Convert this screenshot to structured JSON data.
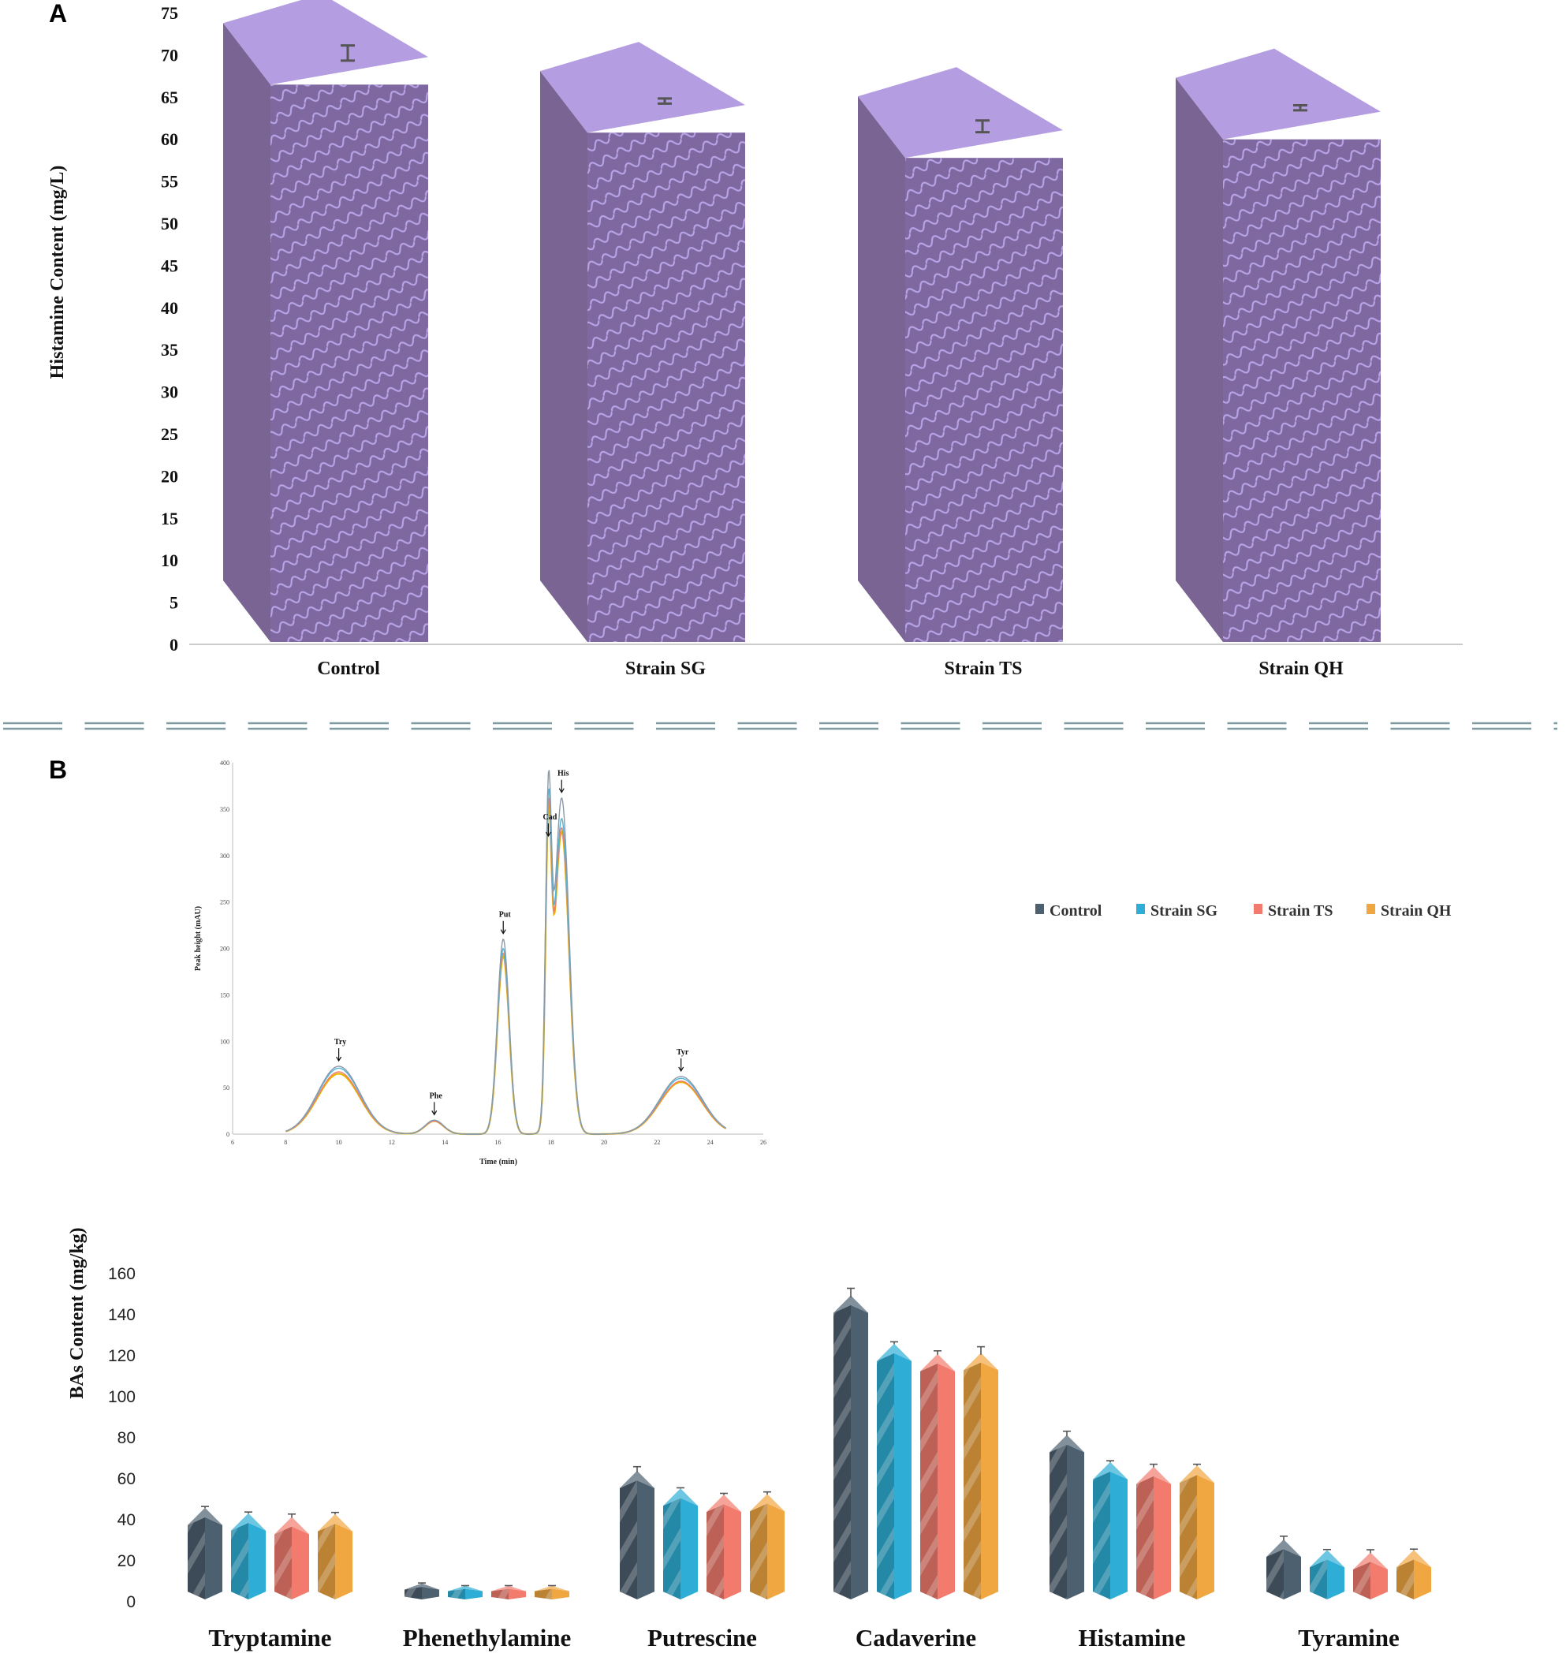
{
  "panel_a": {
    "letter": "A"
  },
  "panel_b": {
    "letter": "B"
  },
  "chart_data": [
    {
      "id": "A",
      "type": "bar",
      "style": "3d",
      "title": "",
      "xlabel": "",
      "ylabel": "Histamine Content (mg/L)",
      "ylim": [
        0,
        75
      ],
      "yticks": [
        0,
        5,
        10,
        15,
        20,
        25,
        30,
        35,
        40,
        45,
        50,
        55,
        60,
        65,
        70,
        75
      ],
      "categories": [
        "Control",
        "Strain SG",
        "Strain TS",
        "Strain QH"
      ],
      "values": [
        70.2,
        64.5,
        61.5,
        63.7
      ],
      "errors": [
        0.9,
        0.3,
        0.7,
        0.3
      ],
      "colors": {
        "top": "#b49de0",
        "side": "#7a6494",
        "front": "#7f68a0",
        "wave": "#b7a4e6"
      }
    },
    {
      "id": "B",
      "type": "bar",
      "style": "3d",
      "title": "",
      "xlabel": "",
      "ylabel": "BAs Content (mg/kg)",
      "ylim": [
        0,
        160
      ],
      "yticks": [
        0,
        20,
        40,
        60,
        80,
        100,
        120,
        140,
        160
      ],
      "categories": [
        "Tryptamine",
        "Phenethylamine",
        "Putrescine",
        "Cadaverine",
        "Histamine",
        "Tyramine"
      ],
      "series": [
        {
          "name": "Control",
          "color": "#4d6070",
          "values": [
            45.5,
            8.6,
            63.5,
            149.0,
            81.0,
            30.0
          ],
          "errors": [
            0.6,
            0.2,
            2.0,
            3.5,
            1.8,
            1.6
          ]
        },
        {
          "name": "Strain SG",
          "color": "#2eaed6",
          "values": [
            42.8,
            7.4,
            54.9,
            125.5,
            67.8,
            24.9
          ],
          "errors": [
            0.6,
            0.1,
            0.3,
            0.9,
            0.6,
            0.2
          ]
        },
        {
          "name": "Strain TS",
          "color": "#f27b6d",
          "values": [
            41.0,
            7.4,
            51.9,
            120.5,
            65.5,
            23.7
          ],
          "errors": [
            1.4,
            0.1,
            0.6,
            1.5,
            1.2,
            1.3
          ]
        },
        {
          "name": "Strain QH",
          "color": "#f0a742",
          "values": [
            42.4,
            7.4,
            52.2,
            121.0,
            66.1,
            24.9
          ],
          "errors": [
            0.8,
            0.1,
            1.0,
            3.0,
            0.6,
            0.4
          ]
        }
      ],
      "legend": {
        "position": "top-right",
        "entries": [
          "Control",
          "Strain SG",
          "Strain TS",
          "Strain QH"
        ]
      }
    },
    {
      "id": "B-inset",
      "type": "line",
      "title": "",
      "xlabel": "Time (min)",
      "ylabel": "Peak height (mAU)",
      "xlim": [
        6,
        26
      ],
      "ylim": [
        0,
        400
      ],
      "xticks": [
        6,
        8,
        10,
        12,
        14,
        16,
        18,
        20,
        22,
        24,
        26
      ],
      "yticks": [
        0,
        50,
        100,
        150,
        200,
        250,
        300,
        350,
        400
      ],
      "peaks": [
        {
          "label": "Try",
          "x": 10.0,
          "sigma": 0.8,
          "heights": [
            73,
            71,
            67,
            65
          ]
        },
        {
          "label": "Phe",
          "x": 13.6,
          "sigma": 0.35,
          "heights": [
            15,
            15,
            14,
            14
          ]
        },
        {
          "label": "Put",
          "x": 16.2,
          "sigma": 0.22,
          "heights": [
            210,
            200,
            195,
            192
          ]
        },
        {
          "label": "Cad",
          "x": 17.9,
          "sigma": 0.11,
          "heights": [
            315,
            300,
            292,
            287
          ]
        },
        {
          "label": "His",
          "x": 18.4,
          "sigma": 0.28,
          "heights": [
            362,
            340,
            330,
            326
          ]
        },
        {
          "label": "Tyr",
          "x": 22.9,
          "sigma": 0.8,
          "heights": [
            62,
            60,
            57,
            56
          ]
        }
      ],
      "series_colors": [
        "#8a9aa8",
        "#4fb6d8",
        "#f27b6d",
        "#e8b400"
      ]
    }
  ]
}
